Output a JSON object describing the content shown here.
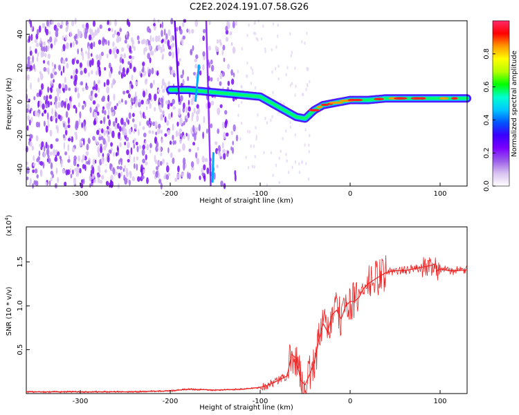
{
  "title": "C2E2.2024.191.07.58.G26",
  "chart_data": [
    {
      "type": "heatmap",
      "xlabel": "Height of straight line (km)",
      "ylabel": "Frequency (Hz)",
      "xlim": [
        -360,
        130
      ],
      "ylim": [
        -50,
        48
      ],
      "xticks": [
        -300,
        -200,
        -100,
        0,
        100
      ],
      "yticks": [
        -40,
        -20,
        0,
        20,
        40
      ],
      "colorbar": {
        "label": "Normalized spectral amplitude",
        "range": [
          0.0,
          1.0
        ],
        "ticks": [
          0.0,
          0.2,
          0.4,
          0.6,
          0.8
        ],
        "colors": [
          "#ffffff",
          "#d9c2f0",
          "#9a5bea",
          "#7a00ff",
          "#3a00ff",
          "#0055ff",
          "#00c8ff",
          "#00ffd0",
          "#00ff00",
          "#b4ff00",
          "#ffff00",
          "#ff9900",
          "#ff0000",
          "#ff2a6a"
        ]
      },
      "ridge": {
        "x": [
          -200,
          -180,
          -160,
          -140,
          -120,
          -100,
          -90,
          -80,
          -70,
          -60,
          -50,
          -40,
          -30,
          -20,
          -10,
          0,
          20,
          40,
          60,
          80,
          100,
          130
        ],
        "y": [
          7,
          7,
          6,
          5,
          4,
          3,
          0,
          -3,
          -6,
          -9,
          -10,
          -5,
          -2,
          -1,
          0,
          1,
          1,
          2,
          2,
          2,
          2,
          2
        ]
      }
    },
    {
      "type": "line",
      "xlabel": "Height of straight line (km)",
      "ylabel": "SNR (10 * v/v)",
      "yunit": "(x10",
      "yunit_exp": "4",
      "yunit_close": ")",
      "xlim": [
        -360,
        130
      ],
      "ylim": [
        0,
        1.9
      ],
      "xticks": [
        -300,
        -200,
        -100,
        0,
        100
      ],
      "yticks": [
        0.5,
        1.0,
        1.5
      ],
      "series": [
        {
          "color": "#ee2222",
          "x": [
            -360,
            -300,
            -250,
            -200,
            -180,
            -150,
            -120,
            -100,
            -90,
            -80,
            -70,
            -65,
            -60,
            -55,
            -50,
            -45,
            -40,
            -35,
            -30,
            -25,
            -20,
            -15,
            -10,
            -5,
            0,
            5,
            10,
            15,
            20,
            30,
            40,
            50,
            60,
            70,
            80,
            85,
            90,
            95,
            97,
            100,
            110,
            120,
            130
          ],
          "y": [
            0.02,
            0.02,
            0.02,
            0.03,
            0.05,
            0.04,
            0.05,
            0.07,
            0.1,
            0.15,
            0.2,
            0.45,
            0.4,
            0.15,
            0.1,
            0.22,
            0.35,
            0.6,
            0.8,
            0.7,
            0.9,
            0.95,
            0.85,
            1.0,
            1.05,
            1.05,
            1.1,
            1.2,
            1.25,
            1.32,
            1.38,
            1.4,
            1.4,
            1.42,
            1.44,
            1.45,
            1.46,
            1.48,
            1.4,
            1.42,
            1.4,
            1.4,
            1.41
          ]
        }
      ]
    }
  ]
}
